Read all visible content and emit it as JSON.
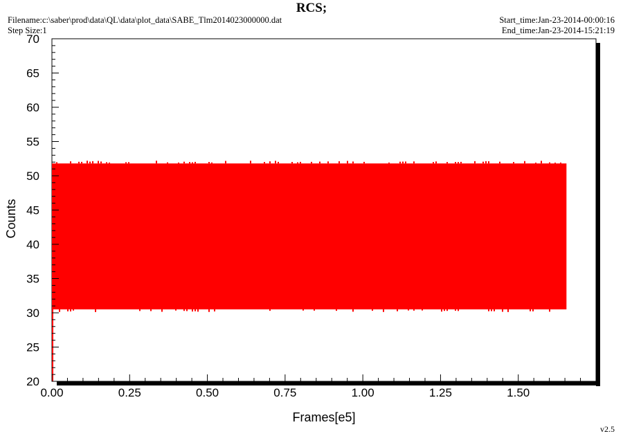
{
  "header": {
    "title": "RCS;",
    "filename": "Filename:c:\\saber\\prod\\data\\QL\\data\\plot_data\\SABE_Tlm2014023000000.dat",
    "step_size": "Step Size:1",
    "start_time": "Start_time:Jan-23-2014-00:00:16",
    "end_time": "End_time:Jan-23-2014-15:21:19"
  },
  "footer": {
    "version": "v2.5"
  },
  "colors": {
    "series": "#ff0000",
    "axis": "#000000",
    "background": "#ffffff"
  },
  "chart_data": {
    "type": "line",
    "title": "RCS;",
    "xlabel": "Frames[e5]",
    "ylabel": "Counts",
    "xlim": [
      0.0,
      1.75
    ],
    "ylim": [
      20,
      70
    ],
    "x_ticks": [
      "0.00",
      "0.25",
      "0.50",
      "0.75",
      "1.00",
      "1.25",
      "1.50"
    ],
    "y_ticks": [
      "20",
      "25",
      "30",
      "35",
      "40",
      "45",
      "50",
      "55",
      "60",
      "65",
      "70"
    ],
    "grid": false,
    "legend": "none",
    "series": [
      {
        "color": "#ff0000",
        "x_range": [
          0.0,
          1.655
        ],
        "min": 30.5,
        "max": 51.8,
        "spike_min": 30.1,
        "spike_max": 52.2
      }
    ]
  }
}
